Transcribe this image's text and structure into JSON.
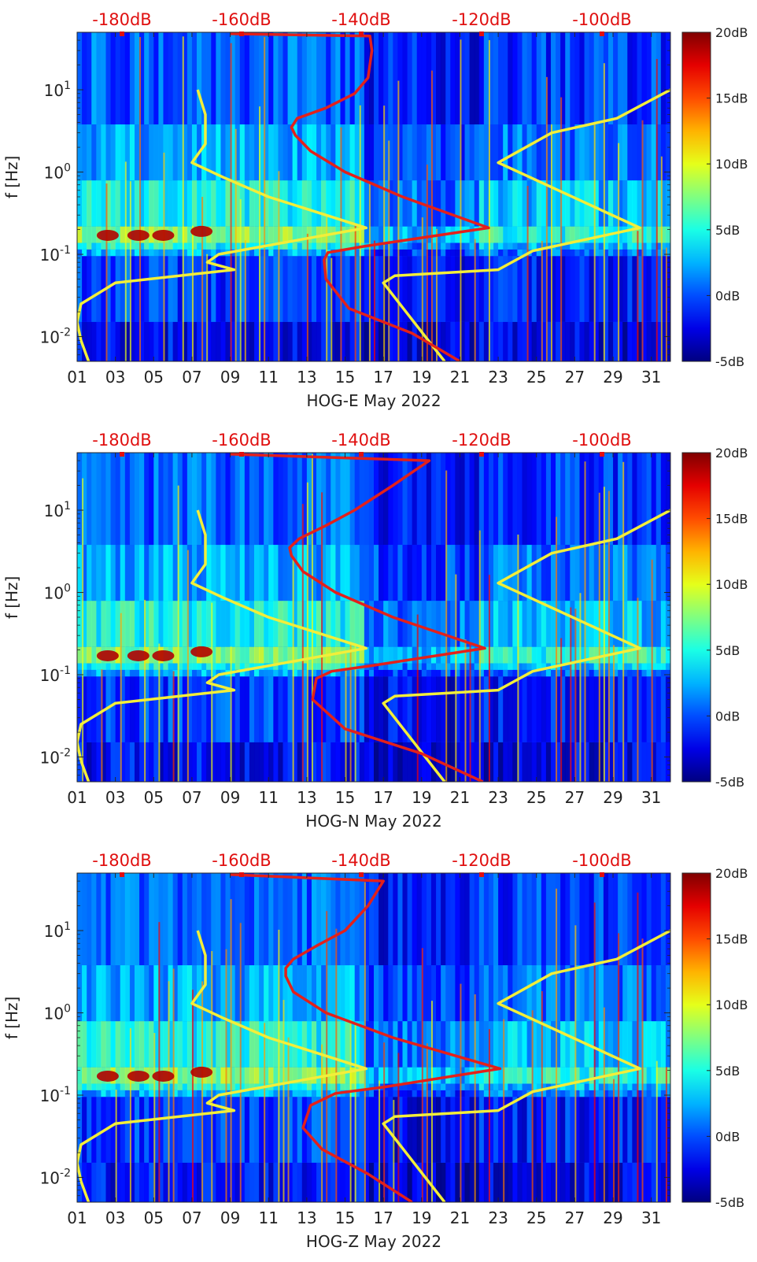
{
  "colors": {
    "db_top_axis": "#e01010",
    "yellow_curve": "#f2ee3a",
    "red_curve": "#e3201b"
  },
  "colorbar": {
    "ticks": [
      "20dB",
      "15dB",
      "10dB",
      "5dB",
      "0dB",
      "-5dB"
    ],
    "min_db": -5,
    "max_db": 20,
    "colormap": "jet"
  },
  "chart_data": [
    {
      "type": "heatmap",
      "xlabel": "HOG-E May 2022",
      "ylabel": "f [Hz]",
      "x_ticks": [
        "01",
        "03",
        "05",
        "07",
        "09",
        "11",
        "13",
        "15",
        "17",
        "19",
        "21",
        "23",
        "25",
        "27",
        "29",
        "31"
      ],
      "y_ticks": [
        "10^-2",
        "10^-1",
        "10^0",
        "10^1"
      ],
      "top_ticks": [
        "-180dB",
        "-160dB",
        "-140dB",
        "-120dB",
        "-100dB"
      ],
      "xlim": [
        1,
        32
      ],
      "ylim": [
        0.005,
        50
      ],
      "y_scale": "log",
      "colorbar_range_db": [
        -5,
        20
      ],
      "series": [
        {
          "color": "yellow",
          "points": [
            [
              1.6,
              0.005
            ],
            [
              1.2,
              0.009
            ],
            [
              1.0,
              0.015
            ],
            [
              1.2,
              0.025
            ],
            [
              3,
              0.045
            ],
            [
              9.2,
              0.065
            ],
            [
              7.8,
              0.08
            ],
            [
              8.4,
              0.1
            ],
            [
              16.1,
              0.21
            ],
            [
              11,
              0.5
            ],
            [
              8.7,
              0.85
            ],
            [
              7,
              1.3
            ],
            [
              7.7,
              2.2
            ],
            [
              7.7,
              5
            ],
            [
              7.3,
              10
            ]
          ]
        },
        {
          "color": "yellow",
          "points": [
            [
              20.2,
              0.005
            ],
            [
              17,
              0.045
            ],
            [
              17.6,
              0.055
            ],
            [
              23,
              0.065
            ],
            [
              24.8,
              0.11
            ],
            [
              30.4,
              0.21
            ],
            [
              23,
              1.3
            ],
            [
              25.8,
              3
            ],
            [
              29.2,
              4.5
            ],
            [
              32,
              10
            ]
          ]
        },
        {
          "color": "red",
          "points": [
            [
              21,
              0.005
            ],
            [
              18.5,
              0.011
            ],
            [
              15.2,
              0.022
            ],
            [
              14,
              0.05
            ],
            [
              13.9,
              0.085
            ],
            [
              14.1,
              0.105
            ],
            [
              16,
              0.125
            ],
            [
              22.5,
              0.21
            ],
            [
              18,
              0.5
            ],
            [
              15,
              1.0
            ],
            [
              13.2,
              1.8
            ],
            [
              12.4,
              2.8
            ],
            [
              12.2,
              3.5
            ],
            [
              12.5,
              4.5
            ],
            [
              14,
              6
            ],
            [
              15.5,
              9
            ],
            [
              16.2,
              14
            ],
            [
              16.4,
              30
            ],
            [
              16.3,
              45
            ],
            [
              9,
              48
            ]
          ]
        }
      ]
    },
    {
      "type": "heatmap",
      "xlabel": "HOG-N May 2022",
      "ylabel": "f [Hz]",
      "x_ticks": [
        "01",
        "03",
        "05",
        "07",
        "09",
        "11",
        "13",
        "15",
        "17",
        "19",
        "21",
        "23",
        "25",
        "27",
        "29",
        "31"
      ],
      "y_ticks": [
        "10^-2",
        "10^-1",
        "10^0",
        "10^1"
      ],
      "top_ticks": [
        "-180dB",
        "-160dB",
        "-140dB",
        "-120dB",
        "-100dB"
      ],
      "xlim": [
        1,
        32
      ],
      "ylim": [
        0.005,
        50
      ],
      "y_scale": "log",
      "colorbar_range_db": [
        -5,
        20
      ],
      "series": [
        {
          "color": "yellow",
          "points": [
            [
              1.6,
              0.005
            ],
            [
              1.2,
              0.009
            ],
            [
              1.0,
              0.015
            ],
            [
              1.2,
              0.025
            ],
            [
              3,
              0.045
            ],
            [
              9.2,
              0.065
            ],
            [
              7.8,
              0.08
            ],
            [
              8.4,
              0.1
            ],
            [
              16.1,
              0.21
            ],
            [
              11,
              0.5
            ],
            [
              8.7,
              0.85
            ],
            [
              7,
              1.3
            ],
            [
              7.7,
              2.2
            ],
            [
              7.7,
              5
            ],
            [
              7.3,
              10
            ]
          ]
        },
        {
          "color": "yellow",
          "points": [
            [
              20.2,
              0.005
            ],
            [
              17,
              0.045
            ],
            [
              17.6,
              0.055
            ],
            [
              23,
              0.065
            ],
            [
              24.8,
              0.11
            ],
            [
              30.4,
              0.21
            ],
            [
              23,
              1.3
            ],
            [
              25.8,
              3
            ],
            [
              29.2,
              4.5
            ],
            [
              32,
              10
            ]
          ]
        },
        {
          "color": "red",
          "points": [
            [
              22.2,
              0.005
            ],
            [
              19,
              0.011
            ],
            [
              15,
              0.022
            ],
            [
              13.3,
              0.05
            ],
            [
              13.5,
              0.09
            ],
            [
              14.3,
              0.11
            ],
            [
              16.5,
              0.13
            ],
            [
              22.3,
              0.21
            ],
            [
              17.5,
              0.5
            ],
            [
              14.5,
              1.0
            ],
            [
              12.8,
              1.8
            ],
            [
              12.2,
              2.8
            ],
            [
              12.1,
              3.5
            ],
            [
              12.6,
              4.5
            ],
            [
              14,
              6.5
            ],
            [
              15.5,
              10
            ],
            [
              17.5,
              20
            ],
            [
              19.4,
              40
            ],
            [
              9,
              48
            ]
          ]
        }
      ]
    },
    {
      "type": "heatmap",
      "xlabel": "HOG-Z May 2022",
      "ylabel": "f [Hz]",
      "x_ticks": [
        "01",
        "03",
        "05",
        "07",
        "09",
        "11",
        "13",
        "15",
        "17",
        "19",
        "21",
        "23",
        "25",
        "27",
        "29",
        "31"
      ],
      "y_ticks": [
        "10^-2",
        "10^-1",
        "10^0",
        "10^1"
      ],
      "top_ticks": [
        "-180dB",
        "-160dB",
        "-140dB",
        "-120dB",
        "-100dB"
      ],
      "xlim": [
        1,
        32
      ],
      "ylim": [
        0.005,
        50
      ],
      "y_scale": "log",
      "colorbar_range_db": [
        -5,
        20
      ],
      "series": [
        {
          "color": "yellow",
          "points": [
            [
              1.6,
              0.005
            ],
            [
              1.2,
              0.009
            ],
            [
              1.0,
              0.015
            ],
            [
              1.2,
              0.025
            ],
            [
              3,
              0.045
            ],
            [
              9.2,
              0.065
            ],
            [
              7.8,
              0.08
            ],
            [
              8.4,
              0.1
            ],
            [
              16.1,
              0.21
            ],
            [
              11,
              0.5
            ],
            [
              8.7,
              0.85
            ],
            [
              7,
              1.3
            ],
            [
              7.7,
              2.2
            ],
            [
              7.7,
              5
            ],
            [
              7.3,
              10
            ]
          ]
        },
        {
          "color": "yellow",
          "points": [
            [
              20.2,
              0.005
            ],
            [
              17,
              0.045
            ],
            [
              17.6,
              0.055
            ],
            [
              23,
              0.065
            ],
            [
              24.8,
              0.11
            ],
            [
              30.4,
              0.21
            ],
            [
              23,
              1.3
            ],
            [
              25.8,
              3
            ],
            [
              29.2,
              4.5
            ],
            [
              32,
              10
            ]
          ]
        },
        {
          "color": "red",
          "points": [
            [
              18.5,
              0.005
            ],
            [
              16.2,
              0.011
            ],
            [
              13.8,
              0.022
            ],
            [
              12.8,
              0.04
            ],
            [
              13.2,
              0.075
            ],
            [
              14.5,
              0.105
            ],
            [
              17,
              0.125
            ],
            [
              23.1,
              0.21
            ],
            [
              17.5,
              0.5
            ],
            [
              14,
              1.0
            ],
            [
              12.3,
              1.8
            ],
            [
              11.9,
              2.8
            ],
            [
              11.9,
              3.5
            ],
            [
              12.3,
              4.5
            ],
            [
              13.5,
              6.5
            ],
            [
              15,
              10
            ],
            [
              16.2,
              20
            ],
            [
              17,
              40
            ],
            [
              9,
              48
            ]
          ]
        }
      ]
    }
  ]
}
